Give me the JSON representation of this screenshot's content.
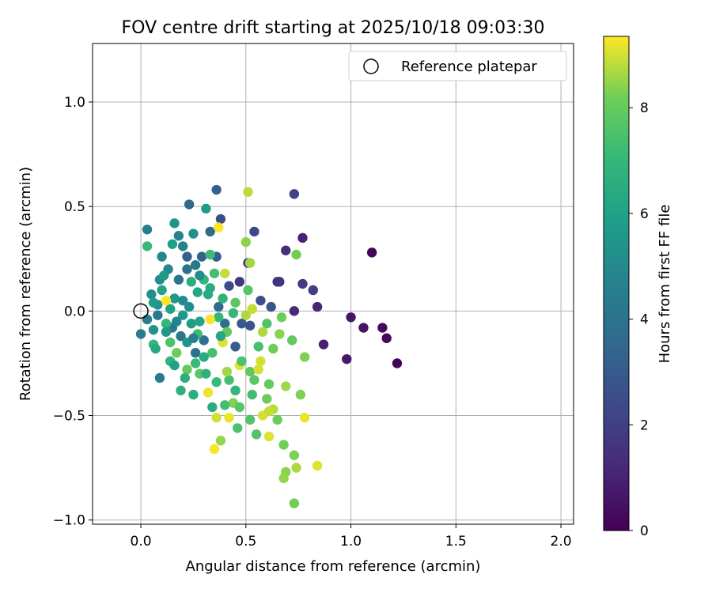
{
  "chart_data": {
    "type": "scatter",
    "title": "FOV centre drift starting at 2025/10/18 09:03:30",
    "xlabel": "Angular distance from reference (arcmin)",
    "ylabel": "Rotation from reference (arcmin)",
    "xlim": [
      -0.23,
      2.06
    ],
    "ylim": [
      -1.02,
      1.28
    ],
    "xticks": [
      0.0,
      0.5,
      1.0,
      1.5,
      2.0
    ],
    "xtick_labels": [
      "0.0",
      "0.5",
      "1.0",
      "1.5",
      "2.0"
    ],
    "yticks": [
      -1.0,
      -0.5,
      0.0,
      0.5,
      1.0
    ],
    "ytick_labels": [
      "−1.0",
      "−0.5",
      "0.0",
      "0.5",
      "1.0"
    ],
    "grid": true,
    "legend": {
      "position": "top-right",
      "entries": [
        "Reference platepar"
      ]
    },
    "reference_point": {
      "x": 0.0,
      "y": 0.0,
      "label": "Reference platepar"
    },
    "colorbar": {
      "label": "Hours from first FF file",
      "range": [
        0,
        9.35
      ],
      "ticks": [
        0,
        2,
        4,
        6,
        8
      ],
      "tick_labels": [
        "0",
        "2",
        "4",
        "6",
        "8"
      ],
      "colormap": "viridis"
    },
    "points": [
      {
        "x": 1.1,
        "y": 0.28,
        "t": 0.1
      },
      {
        "x": 1.22,
        "y": -0.25,
        "t": 0.1
      },
      {
        "x": 1.17,
        "y": -0.13,
        "t": 0.2
      },
      {
        "x": 1.15,
        "y": -0.08,
        "t": 0.3
      },
      {
        "x": 1.06,
        "y": -0.08,
        "t": 0.5
      },
      {
        "x": 1.0,
        "y": -0.03,
        "t": 0.6
      },
      {
        "x": 0.98,
        "y": -0.23,
        "t": 0.7
      },
      {
        "x": 0.87,
        "y": -0.16,
        "t": 0.9
      },
      {
        "x": 0.77,
        "y": 0.35,
        "t": 1.0
      },
      {
        "x": 0.84,
        "y": 0.02,
        "t": 1.1
      },
      {
        "x": 0.73,
        "y": 0.0,
        "t": 1.2
      },
      {
        "x": 0.69,
        "y": 0.29,
        "t": 1.4
      },
      {
        "x": 0.65,
        "y": 0.14,
        "t": 1.5
      },
      {
        "x": 0.66,
        "y": 0.14,
        "t": 1.6
      },
      {
        "x": 0.77,
        "y": 0.13,
        "t": 1.8
      },
      {
        "x": 0.82,
        "y": 0.1,
        "t": 2.0
      },
      {
        "x": 0.73,
        "y": 0.56,
        "t": 2.2
      },
      {
        "x": 0.54,
        "y": 0.38,
        "t": 2.3
      },
      {
        "x": 0.38,
        "y": 0.44,
        "t": 2.5
      },
      {
        "x": 0.47,
        "y": 0.14,
        "t": 1.7
      },
      {
        "x": 0.51,
        "y": 0.23,
        "t": 1.8
      },
      {
        "x": 0.42,
        "y": 0.12,
        "t": 2.4
      },
      {
        "x": 0.57,
        "y": 0.05,
        "t": 2.6
      },
      {
        "x": 0.62,
        "y": 0.02,
        "t": 2.8
      },
      {
        "x": 0.48,
        "y": -0.06,
        "t": 2.9
      },
      {
        "x": 0.52,
        "y": -0.07,
        "t": 2.7
      },
      {
        "x": 0.45,
        "y": -0.17,
        "t": 3.0
      },
      {
        "x": 0.36,
        "y": 0.58,
        "t": 3.3
      },
      {
        "x": 0.23,
        "y": 0.51,
        "t": 3.5
      },
      {
        "x": 0.36,
        "y": 0.26,
        "t": 3.1
      },
      {
        "x": 0.33,
        "y": 0.38,
        "t": 3.6
      },
      {
        "x": 0.22,
        "y": 0.26,
        "t": 3.2
      },
      {
        "x": 0.29,
        "y": 0.26,
        "t": 3.4
      },
      {
        "x": 0.37,
        "y": 0.02,
        "t": 3.7
      },
      {
        "x": 0.4,
        "y": -0.06,
        "t": 3.8
      },
      {
        "x": 0.3,
        "y": -0.14,
        "t": 3.9
      },
      {
        "x": 0.26,
        "y": -0.2,
        "t": 4.0
      },
      {
        "x": 0.19,
        "y": -0.12,
        "t": 4.1
      },
      {
        "x": 0.15,
        "y": -0.08,
        "t": 4.2
      },
      {
        "x": 0.09,
        "y": -0.32,
        "t": 4.3
      },
      {
        "x": 0.0,
        "y": -0.11,
        "t": 4.4
      },
      {
        "x": 0.03,
        "y": -0.04,
        "t": 4.5
      },
      {
        "x": 0.03,
        "y": 0.39,
        "t": 4.6
      },
      {
        "x": 0.18,
        "y": 0.36,
        "t": 4.7
      },
      {
        "x": 0.2,
        "y": 0.31,
        "t": 4.8
      },
      {
        "x": 0.1,
        "y": 0.26,
        "t": 4.9
      },
      {
        "x": 0.13,
        "y": 0.2,
        "t": 5.0
      },
      {
        "x": 0.09,
        "y": 0.15,
        "t": 5.1
      },
      {
        "x": 0.05,
        "y": 0.08,
        "t": 5.2
      },
      {
        "x": 0.08,
        "y": 0.03,
        "t": 5.3
      },
      {
        "x": 0.06,
        "y": -0.09,
        "t": 5.4
      },
      {
        "x": 0.22,
        "y": -0.15,
        "t": 5.5
      },
      {
        "x": 0.25,
        "y": 0.37,
        "t": 5.3
      },
      {
        "x": 0.16,
        "y": 0.42,
        "t": 5.4
      },
      {
        "x": 0.31,
        "y": 0.49,
        "t": 5.8
      },
      {
        "x": 0.16,
        "y": 0.06,
        "t": 5.6
      },
      {
        "x": 0.2,
        "y": -0.02,
        "t": 5.7
      },
      {
        "x": 0.24,
        "y": -0.06,
        "t": 5.9
      },
      {
        "x": 0.14,
        "y": 0.01,
        "t": 6.0
      },
      {
        "x": 0.1,
        "y": 0.1,
        "t": 6.1
      },
      {
        "x": 0.27,
        "y": 0.09,
        "t": 6.2
      },
      {
        "x": 0.32,
        "y": 0.08,
        "t": 6.3
      },
      {
        "x": 0.3,
        "y": -0.22,
        "t": 6.4
      },
      {
        "x": 0.34,
        "y": -0.46,
        "t": 6.5
      },
      {
        "x": 0.25,
        "y": -0.4,
        "t": 6.6
      },
      {
        "x": 0.19,
        "y": -0.38,
        "t": 6.7
      },
      {
        "x": 0.14,
        "y": -0.24,
        "t": 6.8
      },
      {
        "x": 0.12,
        "y": -0.06,
        "t": 6.9
      },
      {
        "x": 0.06,
        "y": -0.16,
        "t": 7.0
      },
      {
        "x": 0.03,
        "y": 0.31,
        "t": 7.1
      },
      {
        "x": 0.33,
        "y": 0.27,
        "t": 7.2
      },
      {
        "x": 0.35,
        "y": 0.18,
        "t": 7.3
      },
      {
        "x": 0.24,
        "y": 0.14,
        "t": 6.5
      },
      {
        "x": 0.3,
        "y": 0.15,
        "t": 6.9
      },
      {
        "x": 0.37,
        "y": -0.03,
        "t": 7.0
      },
      {
        "x": 0.42,
        "y": -0.33,
        "t": 7.4
      },
      {
        "x": 0.46,
        "y": -0.56,
        "t": 7.5
      },
      {
        "x": 0.55,
        "y": -0.59,
        "t": 7.6
      },
      {
        "x": 0.53,
        "y": -0.4,
        "t": 7.3
      },
      {
        "x": 0.56,
        "y": -0.17,
        "t": 7.4
      },
      {
        "x": 0.6,
        "y": -0.06,
        "t": 7.6
      },
      {
        "x": 0.51,
        "y": 0.1,
        "t": 7.7
      },
      {
        "x": 0.45,
        "y": 0.04,
        "t": 7.8
      },
      {
        "x": 0.52,
        "y": -0.29,
        "t": 7.9
      },
      {
        "x": 0.61,
        "y": -0.35,
        "t": 8.0
      },
      {
        "x": 0.65,
        "y": -0.52,
        "t": 8.1
      },
      {
        "x": 0.68,
        "y": -0.64,
        "t": 8.2
      },
      {
        "x": 0.73,
        "y": -0.69,
        "t": 8.3
      },
      {
        "x": 0.73,
        "y": -0.92,
        "t": 8.2
      },
      {
        "x": 0.69,
        "y": -0.77,
        "t": 8.4
      },
      {
        "x": 0.68,
        "y": -0.8,
        "t": 8.5
      },
      {
        "x": 0.78,
        "y": -0.22,
        "t": 8.3
      },
      {
        "x": 0.72,
        "y": -0.14,
        "t": 8.0
      },
      {
        "x": 0.67,
        "y": -0.03,
        "t": 8.1
      },
      {
        "x": 0.74,
        "y": 0.27,
        "t": 8.2
      },
      {
        "x": 0.51,
        "y": 0.57,
        "t": 8.8
      },
      {
        "x": 0.37,
        "y": 0.4,
        "t": 9.3
      },
      {
        "x": 0.4,
        "y": 0.18,
        "t": 8.9
      },
      {
        "x": 0.5,
        "y": 0.33,
        "t": 8.4
      },
      {
        "x": 0.52,
        "y": 0.23,
        "t": 8.6
      },
      {
        "x": 0.58,
        "y": -0.1,
        "t": 8.7
      },
      {
        "x": 0.63,
        "y": -0.47,
        "t": 8.8
      },
      {
        "x": 0.58,
        "y": -0.5,
        "t": 9.0
      },
      {
        "x": 0.61,
        "y": -0.6,
        "t": 9.1
      },
      {
        "x": 0.42,
        "y": -0.51,
        "t": 9.2
      },
      {
        "x": 0.38,
        "y": -0.62,
        "t": 8.5
      },
      {
        "x": 0.35,
        "y": -0.66,
        "t": 9.3
      },
      {
        "x": 0.36,
        "y": -0.51,
        "t": 9.0
      },
      {
        "x": 0.32,
        "y": -0.39,
        "t": 9.2
      },
      {
        "x": 0.41,
        "y": -0.29,
        "t": 8.6
      },
      {
        "x": 0.47,
        "y": -0.26,
        "t": 9.1
      },
      {
        "x": 0.5,
        "y": -0.02,
        "t": 8.7
      },
      {
        "x": 0.53,
        "y": 0.01,
        "t": 8.9
      },
      {
        "x": 0.33,
        "y": -0.04,
        "t": 9.3
      },
      {
        "x": 0.39,
        "y": -0.15,
        "t": 9.1
      },
      {
        "x": 0.12,
        "y": 0.05,
        "t": 9.35
      },
      {
        "x": 0.56,
        "y": -0.28,
        "t": 9.0
      },
      {
        "x": 0.78,
        "y": -0.51,
        "t": 9.2
      },
      {
        "x": 0.84,
        "y": -0.74,
        "t": 9.1
      },
      {
        "x": 0.74,
        "y": -0.75,
        "t": 8.7
      },
      {
        "x": 0.61,
        "y": -0.48,
        "t": 8.9
      },
      {
        "x": 0.57,
        "y": -0.24,
        "t": 9.0
      },
      {
        "x": 0.44,
        "y": -0.44,
        "t": 8.3
      },
      {
        "x": 0.28,
        "y": -0.3,
        "t": 7.8
      },
      {
        "x": 0.22,
        "y": -0.28,
        "t": 8.0
      },
      {
        "x": 0.17,
        "y": -0.2,
        "t": 8.1
      },
      {
        "x": 0.14,
        "y": -0.15,
        "t": 7.5
      },
      {
        "x": 0.27,
        "y": -0.11,
        "t": 7.2
      },
      {
        "x": 0.41,
        "y": -0.1,
        "t": 7.9
      },
      {
        "x": 0.47,
        "y": -0.46,
        "t": 7.7
      },
      {
        "x": 0.52,
        "y": -0.52,
        "t": 7.6
      },
      {
        "x": 0.66,
        "y": -0.11,
        "t": 8.4
      },
      {
        "x": 0.69,
        "y": -0.36,
        "t": 8.6
      },
      {
        "x": 0.76,
        "y": -0.4,
        "t": 8.3
      },
      {
        "x": 0.63,
        "y": -0.18,
        "t": 8.2
      },
      {
        "x": 0.2,
        "y": 0.05,
        "t": 5.0
      },
      {
        "x": 0.11,
        "y": 0.17,
        "t": 5.6
      },
      {
        "x": 0.06,
        "y": 0.04,
        "t": 5.8
      },
      {
        "x": 0.08,
        "y": -0.02,
        "t": 4.2
      },
      {
        "x": 0.17,
        "y": -0.05,
        "t": 4.8
      },
      {
        "x": 0.23,
        "y": 0.02,
        "t": 5.2
      },
      {
        "x": 0.25,
        "y": -0.13,
        "t": 4.6
      },
      {
        "x": 0.28,
        "y": -0.05,
        "t": 6.1
      },
      {
        "x": 0.31,
        "y": -0.3,
        "t": 6.7
      },
      {
        "x": 0.36,
        "y": -0.34,
        "t": 7.1
      },
      {
        "x": 0.4,
        "y": -0.45,
        "t": 7.3
      },
      {
        "x": 0.45,
        "y": -0.38,
        "t": 6.9
      },
      {
        "x": 0.48,
        "y": -0.24,
        "t": 7.5
      },
      {
        "x": 0.54,
        "y": -0.33,
        "t": 7.8
      },
      {
        "x": 0.6,
        "y": -0.42,
        "t": 8.1
      },
      {
        "x": 0.15,
        "y": 0.32,
        "t": 5.9
      },
      {
        "x": 0.26,
        "y": 0.22,
        "t": 4.3
      },
      {
        "x": 0.22,
        "y": 0.2,
        "t": 3.9
      },
      {
        "x": 0.18,
        "y": 0.15,
        "t": 4.0
      },
      {
        "x": 0.28,
        "y": 0.17,
        "t": 5.1
      },
      {
        "x": 0.33,
        "y": 0.11,
        "t": 6.4
      },
      {
        "x": 0.39,
        "y": 0.06,
        "t": 6.8
      },
      {
        "x": 0.44,
        "y": -0.01,
        "t": 7.0
      },
      {
        "x": 0.07,
        "y": -0.18,
        "t": 6.3
      },
      {
        "x": 0.12,
        "y": -0.1,
        "t": 5.5
      },
      {
        "x": 0.16,
        "y": -0.26,
        "t": 6.0
      },
      {
        "x": 0.21,
        "y": -0.32,
        "t": 6.6
      },
      {
        "x": 0.26,
        "y": -0.25,
        "t": 7.1
      },
      {
        "x": 0.34,
        "y": -0.2,
        "t": 7.4
      },
      {
        "x": 0.38,
        "y": -0.12,
        "t": 6.2
      }
    ]
  }
}
